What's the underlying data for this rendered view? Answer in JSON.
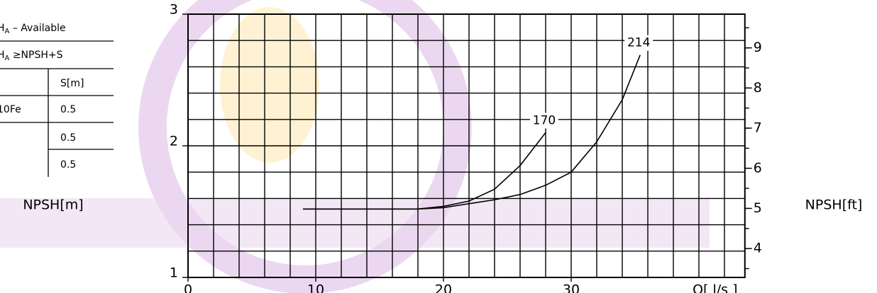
{
  "table": {
    "title": {
      "symbol": "H",
      "sub": "A",
      "text": " – Available"
    },
    "rule": {
      "symbol": "H",
      "sub": "A",
      "text": " ≥NPSH+S"
    },
    "column_header": "S[m]",
    "rows": [
      {
        "material": "10Fe",
        "s": "0.5"
      },
      {
        "s": "0.5"
      },
      {
        "s": "0.5"
      }
    ]
  },
  "chart_data": {
    "type": "line",
    "ylabel": "NPSH[m]",
    "y2label": "NPSH[ft]",
    "xlabel": "Q[ l/s ]",
    "xlim": [
      0,
      43.6
    ],
    "xticks": [
      0,
      10,
      20,
      30
    ],
    "ylim": [
      1,
      3
    ],
    "yticks": [
      1,
      2,
      3
    ],
    "y2lim": [
      3.28,
      9.84
    ],
    "y2ticks": [
      4,
      5,
      6,
      7,
      8,
      9
    ],
    "grid": {
      "x_step": 2,
      "y_step": 0.2,
      "y2_minor_step": 0.5
    },
    "color": "#000000",
    "series": [
      {
        "name": "170",
        "x": [
          9,
          12,
          15,
          18,
          20,
          22,
          24,
          26,
          28
        ],
        "values": [
          1.52,
          1.52,
          1.52,
          1.52,
          1.54,
          1.58,
          1.67,
          1.85,
          2.1
        ]
      },
      {
        "name": "214",
        "x": [
          9,
          12,
          15,
          18,
          20,
          22,
          24,
          26,
          28,
          30,
          32,
          34,
          35.4
        ],
        "values": [
          1.52,
          1.52,
          1.52,
          1.52,
          1.53,
          1.56,
          1.59,
          1.63,
          1.7,
          1.8,
          2.03,
          2.35,
          2.69
        ]
      }
    ]
  }
}
